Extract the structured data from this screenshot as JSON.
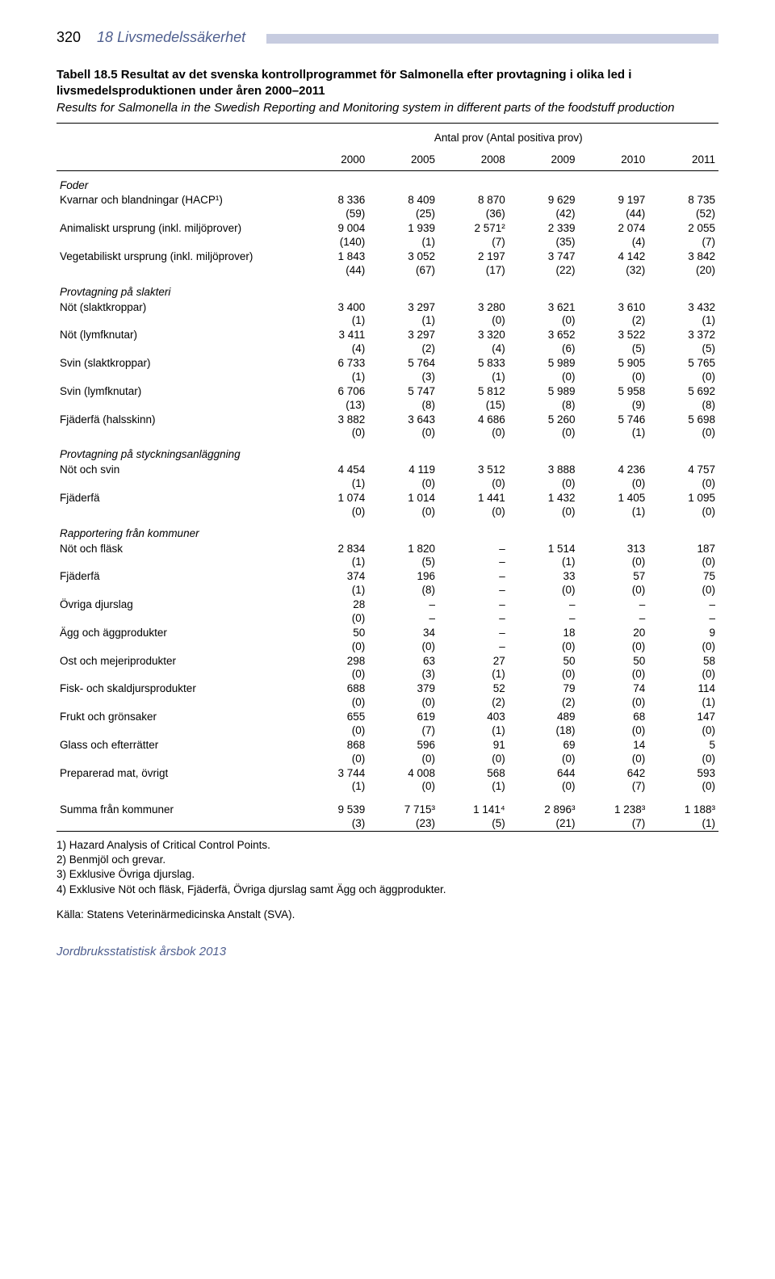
{
  "header": {
    "page_number": "320",
    "section_title": "18  Livsmedelssäkerhet"
  },
  "title": {
    "main": "Tabell 18.5  Resultat av det svenska kontrollprogrammet för Salmonella efter provtagning i olika led i livsmedelsproduktionen under åren 2000–2011",
    "sub": "Results for Salmonella in the Swedish Reporting and Monitoring system in different parts of the foodstuff production"
  },
  "table": {
    "super_header": "Antal prov (Antal positiva prov)",
    "years": [
      "2000",
      "2005",
      "2008",
      "2009",
      "2010",
      "2011"
    ],
    "groups": [
      {
        "heading": "Foder",
        "rows": [
          {
            "label": "Kvarnar och blandningar (HACP¹)",
            "vals": [
              "8 336",
              "8 409",
              "8 870",
              "9 629",
              "9 197",
              "8 735"
            ],
            "parens": [
              "(59)",
              "(25)",
              "(36)",
              "(42)",
              "(44)",
              "(52)"
            ]
          },
          {
            "label": "Animaliskt ursprung (inkl. miljöprover)",
            "vals": [
              "9 004",
              "1 939",
              "2 571²",
              "2 339",
              "2 074",
              "2 055"
            ],
            "parens": [
              "(140)",
              "(1)",
              "(7)",
              "(35)",
              "(4)",
              "(7)"
            ]
          },
          {
            "label": "Vegetabiliskt ursprung (inkl. miljöprover)",
            "vals": [
              "1 843",
              "3 052",
              "2 197",
              "3 747",
              "4 142",
              "3 842"
            ],
            "parens": [
              "(44)",
              "(67)",
              "(17)",
              "(22)",
              "(32)",
              "(20)"
            ]
          }
        ]
      },
      {
        "heading": "Provtagning på slakteri",
        "rows": [
          {
            "label": "Nöt (slaktkroppar)",
            "vals": [
              "3 400",
              "3 297",
              "3 280",
              "3 621",
              "3 610",
              "3 432"
            ],
            "parens": [
              "(1)",
              "(1)",
              "(0)",
              "(0)",
              "(2)",
              "(1)"
            ]
          },
          {
            "label": "Nöt (lymfknutar)",
            "vals": [
              "3 411",
              "3 297",
              "3 320",
              "3 652",
              "3 522",
              "3 372"
            ],
            "parens": [
              "(4)",
              "(2)",
              "(4)",
              "(6)",
              "(5)",
              "(5)"
            ]
          },
          {
            "label": "Svin (slaktkroppar)",
            "vals": [
              "6 733",
              "5 764",
              "5 833",
              "5 989",
              "5 905",
              "5 765"
            ],
            "parens": [
              "(1)",
              "(3)",
              "(1)",
              "(0)",
              "(0)",
              "(0)"
            ]
          },
          {
            "label": "Svin (lymfknutar)",
            "vals": [
              "6 706",
              "5 747",
              "5 812",
              "5 989",
              "5 958",
              "5 692"
            ],
            "parens": [
              "(13)",
              "(8)",
              "(15)",
              "(8)",
              "(9)",
              "(8)"
            ]
          },
          {
            "label": "Fjäderfä (halsskinn)",
            "vals": [
              "3 882",
              "3 643",
              "4 686",
              "5 260",
              "5 746",
              "5 698"
            ],
            "parens": [
              "(0)",
              "(0)",
              "(0)",
              "(0)",
              "(1)",
              "(0)"
            ]
          }
        ]
      },
      {
        "heading": "Provtagning på styckningsanläggning",
        "rows": [
          {
            "label": "Nöt och svin",
            "vals": [
              "4 454",
              "4 119",
              "3 512",
              "3 888",
              "4 236",
              "4 757"
            ],
            "parens": [
              "(1)",
              "(0)",
              "(0)",
              "(0)",
              "(0)",
              "(0)"
            ]
          },
          {
            "label": "Fjäderfä",
            "vals": [
              "1 074",
              "1 014",
              "1 441",
              "1 432",
              "1 405",
              "1 095"
            ],
            "parens": [
              "(0)",
              "(0)",
              "(0)",
              "(0)",
              "(1)",
              "(0)"
            ]
          }
        ]
      },
      {
        "heading": "Rapportering från kommuner",
        "rows": [
          {
            "label": "Nöt och fläsk",
            "vals": [
              "2 834",
              "1 820",
              "–",
              "1 514",
              "313",
              "187"
            ],
            "parens": [
              "(1)",
              "(5)",
              "–",
              "(1)",
              "(0)",
              "(0)"
            ]
          },
          {
            "label": "Fjäderfä",
            "vals": [
              "374",
              "196",
              "–",
              "33",
              "57",
              "75"
            ],
            "parens": [
              "(1)",
              "(8)",
              "–",
              "(0)",
              "(0)",
              "(0)"
            ]
          },
          {
            "label": "Övriga djurslag",
            "vals": [
              "28",
              "–",
              "–",
              "–",
              "–",
              "–"
            ],
            "parens": [
              "(0)",
              "–",
              "–",
              "–",
              "–",
              "–"
            ]
          },
          {
            "label": "Ägg och äggprodukter",
            "vals": [
              "50",
              "34",
              "–",
              "18",
              "20",
              "9"
            ],
            "parens": [
              "(0)",
              "(0)",
              "–",
              "(0)",
              "(0)",
              "(0)"
            ]
          },
          {
            "label": "Ost och mejeriprodukter",
            "vals": [
              "298",
              "63",
              "27",
              "50",
              "50",
              "58"
            ],
            "parens": [
              "(0)",
              "(3)",
              "(1)",
              "(0)",
              "(0)",
              "(0)"
            ]
          },
          {
            "label": "Fisk- och skaldjursprodukter",
            "vals": [
              "688",
              "379",
              "52",
              "79",
              "74",
              "114"
            ],
            "parens": [
              "(0)",
              "(0)",
              "(2)",
              "(2)",
              "(0)",
              "(1)"
            ]
          },
          {
            "label": "Frukt och grönsaker",
            "vals": [
              "655",
              "619",
              "403",
              "489",
              "68",
              "147"
            ],
            "parens": [
              "(0)",
              "(7)",
              "(1)",
              "(18)",
              "(0)",
              "(0)"
            ]
          },
          {
            "label": "Glass och efterrätter",
            "vals": [
              "868",
              "596",
              "91",
              "69",
              "14",
              "5"
            ],
            "parens": [
              "(0)",
              "(0)",
              "(0)",
              "(0)",
              "(0)",
              "(0)"
            ]
          },
          {
            "label": "Preparerad mat, övrigt",
            "vals": [
              "3 744",
              "4 008",
              "568",
              "644",
              "642",
              "593"
            ],
            "parens": [
              "(1)",
              "(0)",
              "(1)",
              "(0)",
              "(7)",
              "(0)"
            ]
          }
        ]
      }
    ],
    "summary": {
      "label": "Summa från kommuner",
      "vals": [
        "9 539",
        "7 715³",
        "1 141⁴",
        "2 896³",
        "1 238³",
        "1 188³"
      ],
      "parens": [
        "(3)",
        "(23)",
        "(5)",
        "(21)",
        "(7)",
        "(1)"
      ],
      "bottom_rule": true
    }
  },
  "footnotes": [
    "1) Hazard Analysis of Critical Control Points.",
    "2) Benmjöl och grevar.",
    "3) Exklusive Övriga djurslag.",
    "4) Exklusive Nöt och fläsk, Fjäderfä, Övriga djurslag samt Ägg och äggprodukter."
  ],
  "source": "Källa: Statens Veterinärmedicinska Anstalt (SVA).",
  "footer": "Jordbruksstatistisk årsbok 2013",
  "styling": {
    "page_bg": "#ffffff",
    "text_color": "#000000",
    "accent_color": "#4f5f8f",
    "header_bar_color": "#c7cce0",
    "body_font": "Arial",
    "body_font_size_pt": 10,
    "title_font_size_pt": 11,
    "header_font_size_pt": 13,
    "footer_font_style": "italic"
  }
}
